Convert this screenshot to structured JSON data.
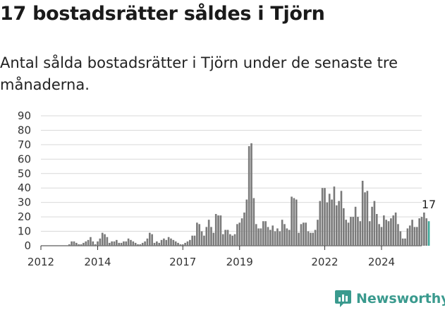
{
  "title": "17 bostadsrätter såldes i Tjörn",
  "subtitle": "Antal sålda bostadsrätter i Tjörn under de senaste tre månaderna.",
  "brand": {
    "name": "Newsworthy",
    "logo_icon": "newsworthy-chart-icon",
    "color": "#3a9a8e"
  },
  "colors": {
    "bar": "#7a7a7a",
    "highlight": "#3aa697",
    "grid": "#d9d9d9"
  },
  "chart_data": {
    "type": "bar",
    "title": "17 bostadsrätter såldes i Tjörn",
    "subtitle": "Antal sålda bostadsrätter i Tjörn under de senaste tre månaderna.",
    "xlabel": "",
    "ylabel": "",
    "ylim": [
      0,
      90
    ],
    "yticks": [
      0,
      10,
      20,
      30,
      40,
      50,
      60,
      70,
      80,
      90
    ],
    "grid": true,
    "x_start": "2012-01",
    "x_end": "2025-06",
    "xticks": [
      {
        "label": "2012",
        "date": "2012-01"
      },
      {
        "label": "2014",
        "date": "2014-01"
      },
      {
        "label": "2017",
        "date": "2017-01"
      },
      {
        "label": "2019",
        "date": "2019-01"
      },
      {
        "label": "2022",
        "date": "2022-01"
      },
      {
        "label": "2024",
        "date": "2024-01"
      }
    ],
    "first_month": "2012-01",
    "values": [
      0,
      0,
      0,
      0,
      0,
      0,
      0,
      0,
      0,
      0,
      0,
      0,
      1,
      3,
      3,
      2,
      1,
      1,
      2,
      3,
      4,
      6,
      3,
      1,
      3,
      5,
      9,
      8,
      6,
      2,
      3,
      3,
      4,
      2,
      2,
      3,
      3,
      5,
      4,
      3,
      2,
      1,
      1,
      2,
      3,
      5,
      9,
      8,
      2,
      3,
      2,
      4,
      5,
      4,
      6,
      5,
      4,
      3,
      2,
      1,
      1,
      2,
      3,
      4,
      7,
      7,
      16,
      15,
      10,
      7,
      13,
      18,
      13,
      9,
      22,
      21,
      21,
      8,
      11,
      11,
      8,
      7,
      8,
      15,
      16,
      19,
      23,
      32,
      69,
      71,
      33,
      15,
      12,
      12,
      17,
      17,
      13,
      11,
      14,
      10,
      12,
      10,
      18,
      15,
      12,
      11,
      34,
      33,
      32,
      9,
      15,
      16,
      16,
      10,
      9,
      9,
      11,
      18,
      31,
      40,
      40,
      30,
      36,
      32,
      41,
      28,
      31,
      38,
      26,
      18,
      16,
      20,
      20,
      27,
      20,
      17,
      45,
      37,
      38,
      17,
      27,
      31,
      22,
      15,
      13,
      21,
      18,
      17,
      19,
      21,
      23,
      15,
      10,
      5,
      5,
      12,
      14,
      18,
      13,
      13,
      19,
      20,
      23,
      19,
      17
    ],
    "highlight_last": 1,
    "annotation": {
      "text": "17",
      "target": "last"
    }
  }
}
